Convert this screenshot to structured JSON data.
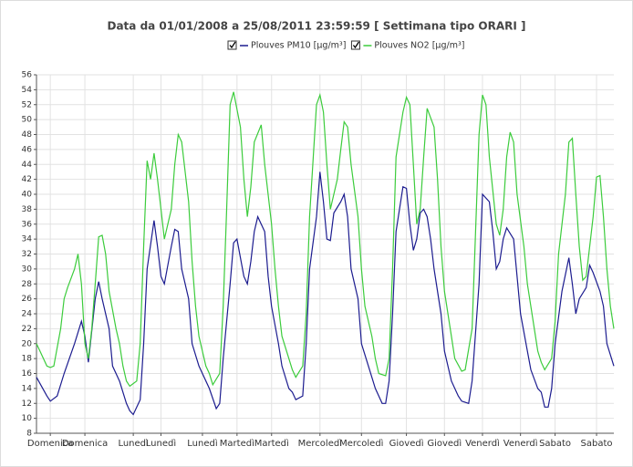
{
  "chart_data": {
    "type": "line",
    "title": "Data da 01/01/2008 a 25/08/2011 23:59:59  [ Settimana tipo ORARI ]",
    "xlim": [
      0,
      167
    ],
    "xticks": [
      {
        "value": 4,
        "label": "Domenica"
      },
      {
        "value": 14,
        "label": "Domenica"
      },
      {
        "value": 28,
        "label": "Lunedì"
      },
      {
        "value": 36,
        "label": "Lunedì"
      },
      {
        "value": 48,
        "label": "Lunedì"
      },
      {
        "value": 58,
        "label": "Martedì"
      },
      {
        "value": 68,
        "label": "Martedì"
      },
      {
        "value": 82,
        "label": "Mercoledì"
      },
      {
        "value": 94,
        "label": "Mercoledì"
      },
      {
        "value": 107,
        "label": "Giovedì"
      },
      {
        "value": 118,
        "label": "Giovedì"
      },
      {
        "value": 129,
        "label": "Venerdì"
      },
      {
        "value": 140,
        "label": "Venerdì"
      },
      {
        "value": 150,
        "label": "Sabato"
      },
      {
        "value": 162,
        "label": "Sabato"
      }
    ],
    "ylim": [
      8,
      56
    ],
    "yticks": [
      8,
      10,
      12,
      14,
      16,
      18,
      20,
      22,
      24,
      26,
      28,
      30,
      32,
      34,
      36,
      38,
      40,
      42,
      44,
      46,
      48,
      50,
      52,
      54,
      56
    ],
    "grid": true,
    "series": [
      {
        "name": "Plouves PM10 [µg/m³]",
        "color": "#1c1c8f",
        "x": [
          0,
          3,
          4,
          6,
          8,
          11,
          13,
          14,
          15,
          17,
          18,
          19,
          21,
          22,
          24,
          26,
          27,
          28,
          30,
          31,
          32,
          34,
          35,
          36,
          37,
          39,
          40,
          41,
          42,
          44,
          45,
          47,
          50,
          52,
          53,
          54,
          56,
          57,
          58,
          60,
          61,
          62,
          63,
          64,
          66,
          67,
          68,
          70,
          71,
          73,
          74,
          75,
          77,
          78,
          79,
          81,
          82,
          83,
          84,
          85,
          86,
          88,
          89,
          90,
          91,
          93,
          94,
          96,
          98,
          100,
          101,
          102,
          103,
          104,
          106,
          107,
          108,
          109,
          110,
          111,
          112,
          113,
          114,
          115,
          117,
          118,
          120,
          122,
          123,
          125,
          126,
          128,
          129,
          131,
          132,
          133,
          134,
          135,
          136,
          138,
          139,
          140,
          142,
          143,
          145,
          146,
          147,
          148,
          149,
          150,
          152,
          154,
          155,
          156,
          157,
          159,
          160,
          161,
          163,
          164,
          165,
          167
        ],
        "values": [
          15.5,
          13,
          12.3,
          13,
          16,
          20,
          23,
          21,
          17.5,
          26,
          28.3,
          26,
          22,
          17,
          15,
          12,
          11,
          10.5,
          12.5,
          20,
          30,
          36.5,
          33,
          29,
          28,
          33,
          35.3,
          35,
          30,
          26,
          20,
          17,
          14,
          11.3,
          12,
          18,
          28,
          33.5,
          34,
          29,
          28,
          31,
          35,
          37,
          35,
          29,
          25,
          20,
          17,
          14,
          13.5,
          12.5,
          13,
          20,
          30,
          37,
          43,
          39,
          34,
          33.8,
          37.5,
          39,
          40,
          37,
          30,
          26,
          20,
          17,
          14,
          12,
          12,
          15,
          24,
          35,
          41,
          40.8,
          36,
          32.5,
          34,
          37.5,
          38,
          37,
          34,
          30,
          24,
          19,
          15,
          13,
          12.3,
          12,
          15,
          28,
          40,
          39,
          35,
          30,
          31,
          34,
          35.5,
          34,
          29,
          24,
          19,
          16.5,
          14,
          13.5,
          11.5,
          11.5,
          14,
          20,
          27,
          31.5,
          28,
          24,
          26,
          27.5,
          30.5,
          29.5,
          27,
          25,
          20,
          17
        ]
      },
      {
        "name": "Plouves NO2 [µg/m³]",
        "color": "#3ccc3c",
        "x": [
          0,
          1,
          3,
          4,
          5,
          7,
          8,
          9,
          11,
          12,
          13,
          14,
          15,
          16,
          17,
          18,
          19,
          20,
          21,
          23,
          24,
          25,
          26,
          27,
          29,
          30,
          31,
          32,
          33,
          34,
          35,
          36,
          37,
          39,
          40,
          41,
          42,
          44,
          45,
          46,
          47,
          49,
          50,
          51,
          53,
          54,
          55,
          56,
          57,
          59,
          60,
          61,
          62,
          63,
          65,
          66,
          68,
          69,
          70,
          71,
          73,
          74,
          75,
          77,
          78,
          79,
          81,
          82,
          83,
          84,
          85,
          87,
          88,
          89,
          90,
          91,
          93,
          94,
          95,
          97,
          98,
          99,
          101,
          102,
          103,
          104,
          106,
          107,
          108,
          109,
          110,
          111,
          112,
          113,
          115,
          116,
          117,
          118,
          120,
          121,
          123,
          124,
          126,
          127,
          128,
          129,
          130,
          131,
          133,
          134,
          135,
          136,
          137,
          138,
          139,
          141,
          142,
          144,
          145,
          146,
          147,
          149,
          150,
          151,
          153,
          154,
          155,
          156,
          157,
          158,
          159,
          161,
          162,
          163,
          164,
          165,
          166,
          167
        ],
        "values": [
          20,
          19,
          17,
          16.8,
          17,
          22,
          26,
          27.5,
          30,
          32,
          28,
          20,
          18,
          22,
          28,
          34.3,
          34.5,
          32,
          27,
          22,
          20,
          17,
          15,
          14.3,
          15,
          20,
          33,
          44.5,
          42,
          45.5,
          42,
          38,
          34,
          38,
          44,
          48,
          47,
          39,
          31,
          25,
          21,
          17,
          16,
          14.5,
          16,
          25,
          38,
          52,
          53.7,
          49,
          42,
          37,
          41,
          47,
          49.3,
          44,
          36,
          30,
          25,
          21,
          18,
          16.5,
          15.5,
          17,
          24,
          37,
          52,
          53.3,
          51,
          44,
          38,
          42,
          46,
          49.7,
          49,
          44,
          37,
          30,
          25,
          21,
          18,
          16,
          15.7,
          18,
          30,
          45,
          51,
          53,
          52,
          44,
          36,
          38,
          45,
          51.5,
          49,
          42,
          33,
          27,
          21,
          18,
          16.3,
          16.5,
          22,
          35,
          48,
          53.3,
          52,
          45,
          36,
          34.5,
          38,
          45,
          48.3,
          47,
          40,
          33,
          28,
          22,
          19,
          17.5,
          16.5,
          18,
          23,
          32,
          40,
          47,
          47.5,
          40,
          33,
          28.5,
          29,
          37,
          42.3,
          42.5,
          37,
          30,
          25,
          22
        ]
      }
    ]
  }
}
